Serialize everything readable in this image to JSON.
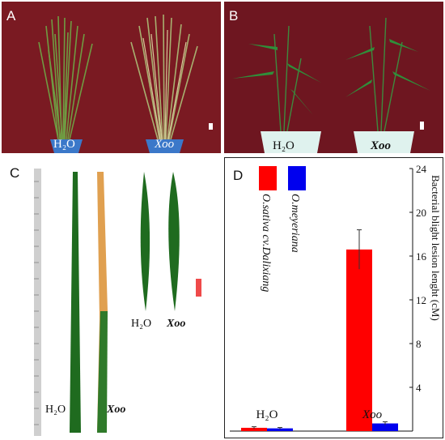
{
  "panels": {
    "a": {
      "letter": "A",
      "pot_labels": [
        "H₂O",
        "Xoo"
      ]
    },
    "b": {
      "letter": "B",
      "pot_labels": [
        "H₂O",
        "Xoo"
      ]
    },
    "c": {
      "letter": "C",
      "long_labels": [
        "H₂O",
        "Xoo"
      ],
      "short_labels": [
        "H₂O",
        "Xoo"
      ]
    },
    "d": {
      "letter": "D"
    }
  },
  "colors": {
    "red": "#ff0000",
    "blue": "#0000ee",
    "leaf_green": "#1f6b1f",
    "leaf_dead": "#e0a050",
    "background": "#7a1a22"
  },
  "chart_data": {
    "type": "bar",
    "categories": [
      "H₂O",
      "Xoo"
    ],
    "series": [
      {
        "name": "O.sativa cv.Dalixiang",
        "values": [
          0.3,
          16.6
        ],
        "errors": [
          0.1,
          1.8
        ],
        "color": "#ff0000"
      },
      {
        "name": "O.meyeriana",
        "values": [
          0.25,
          0.7
        ],
        "errors": [
          0.08,
          0.15
        ],
        "color": "#0000ee"
      }
    ],
    "ylabel": "Bacterial blight lesion lenght (cM)",
    "ylim": [
      0,
      24
    ],
    "yticks": [
      0,
      4,
      8,
      12,
      16,
      20,
      24
    ],
    "yaxis_side": "right",
    "legend_placement": "top-left"
  }
}
